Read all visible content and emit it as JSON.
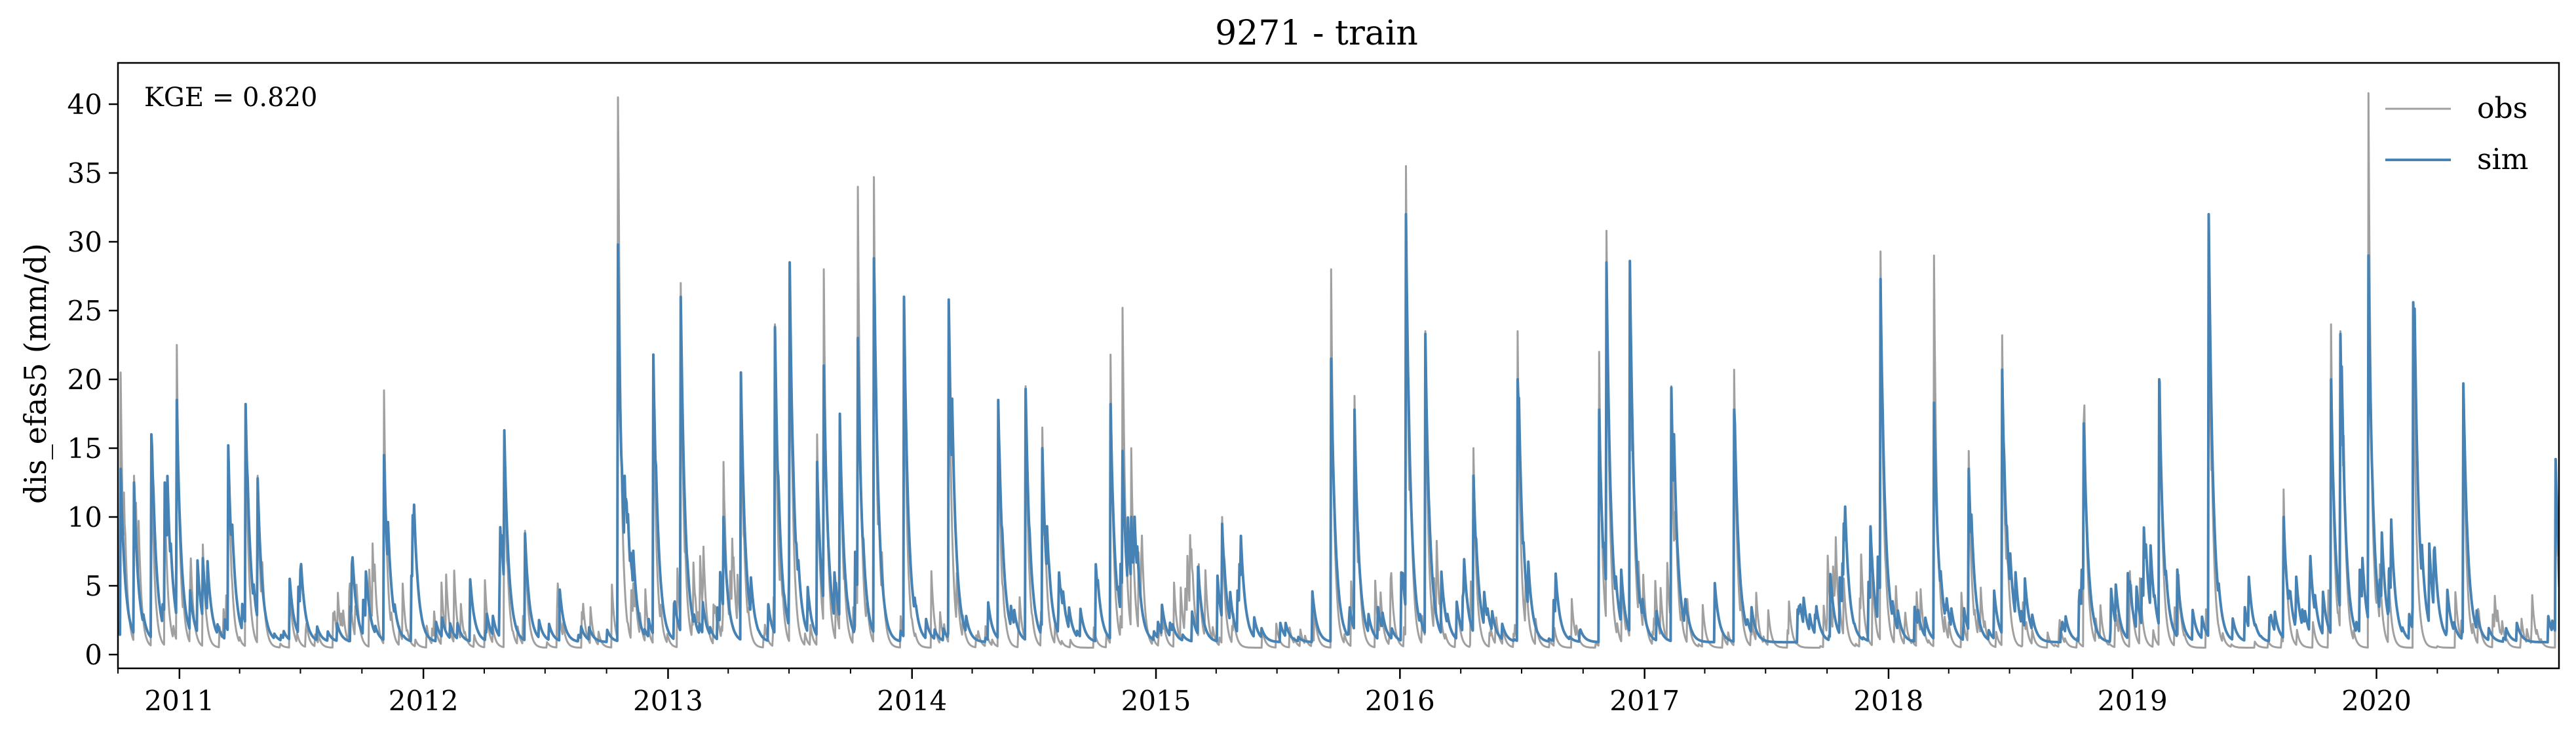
{
  "chart_data": {
    "type": "line",
    "title": "9271 - train",
    "xlabel": "",
    "ylabel": "dis_efas5 (mm/d)",
    "annotation": "KGE = 0.820",
    "xlim": [
      "2010-10-01",
      "2020-09-30"
    ],
    "ylim": [
      -1,
      43
    ],
    "yticks": [
      0,
      5,
      10,
      15,
      20,
      25,
      30,
      35,
      40
    ],
    "ytick_labels": [
      "0",
      "5",
      "10",
      "15",
      "20",
      "25",
      "30",
      "35",
      "40"
    ],
    "xticks": [
      "2011-01-01",
      "2012-01-01",
      "2013-01-01",
      "2014-01-01",
      "2015-01-01",
      "2016-01-01",
      "2017-01-01",
      "2018-01-01",
      "2019-01-01",
      "2020-01-01"
    ],
    "xtick_labels": [
      "2011",
      "2012",
      "2013",
      "2014",
      "2015",
      "2016",
      "2017",
      "2018",
      "2019",
      "2020"
    ],
    "grid": false,
    "legend": {
      "position": "top-right"
    },
    "series": [
      {
        "name": "obs",
        "color": "#a0a0a0",
        "peaks": [
          [
            "2010-10-05",
            20.5
          ],
          [
            "2010-10-25",
            13
          ],
          [
            "2010-11-20",
            16
          ],
          [
            "2010-12-10",
            12.5
          ],
          [
            "2010-12-28",
            22.5
          ],
          [
            "2011-02-05",
            8
          ],
          [
            "2011-03-15",
            15
          ],
          [
            "2011-04-10",
            18
          ],
          [
            "2011-04-28",
            13
          ],
          [
            "2011-06-15",
            5
          ],
          [
            "2011-11-03",
            19.2
          ],
          [
            "2012-05-01",
            16
          ],
          [
            "2012-06-01",
            9
          ],
          [
            "2012-10-18",
            40.5
          ],
          [
            "2012-12-10",
            21.8
          ],
          [
            "2013-01-20",
            27
          ],
          [
            "2013-03-25",
            14
          ],
          [
            "2013-04-20",
            20.5
          ],
          [
            "2013-06-10",
            24
          ],
          [
            "2013-07-02",
            28.5
          ],
          [
            "2013-08-12",
            16
          ],
          [
            "2013-08-22",
            28
          ],
          [
            "2013-09-15",
            17.5
          ],
          [
            "2013-10-12",
            34
          ],
          [
            "2013-11-05",
            34.7
          ],
          [
            "2013-12-20",
            26
          ],
          [
            "2014-02-25",
            25.8
          ],
          [
            "2014-05-10",
            18.5
          ],
          [
            "2014-06-20",
            19.5
          ],
          [
            "2014-07-15",
            16.5
          ],
          [
            "2014-10-25",
            21.8
          ],
          [
            "2014-11-12",
            25.2
          ],
          [
            "2014-11-25",
            15
          ],
          [
            "2015-04-10",
            10
          ],
          [
            "2015-09-20",
            28
          ],
          [
            "2015-10-25",
            18.8
          ],
          [
            "2016-01-10",
            35.5
          ],
          [
            "2016-02-08",
            23.5
          ],
          [
            "2016-04-20",
            15
          ],
          [
            "2016-06-25",
            23.5
          ],
          [
            "2016-10-25",
            22
          ],
          [
            "2016-11-05",
            30.8
          ],
          [
            "2016-12-10",
            28.5
          ],
          [
            "2017-02-10",
            19.5
          ],
          [
            "2017-05-15",
            20.7
          ],
          [
            "2017-12-20",
            29.3
          ],
          [
            "2018-03-10",
            29
          ],
          [
            "2018-05-01",
            14.8
          ],
          [
            "2018-06-20",
            23.2
          ],
          [
            "2018-10-20",
            17
          ],
          [
            "2019-02-10",
            20
          ],
          [
            "2019-04-25",
            32
          ],
          [
            "2019-08-15",
            12
          ],
          [
            "2019-10-25",
            24
          ],
          [
            "2019-11-08",
            23.5
          ],
          [
            "2019-12-20",
            40.8
          ],
          [
            "2020-02-25",
            25.5
          ],
          [
            "2020-05-10",
            19.7
          ],
          [
            "2020-09-25",
            14
          ]
        ]
      },
      {
        "name": "sim",
        "color": "#4682b4",
        "peaks": [
          [
            "2010-10-05",
            13.5
          ],
          [
            "2010-10-25",
            12.5
          ],
          [
            "2010-11-20",
            16
          ],
          [
            "2010-12-10",
            12.5
          ],
          [
            "2010-12-28",
            18.5
          ],
          [
            "2011-02-05",
            7
          ],
          [
            "2011-03-15",
            15.2
          ],
          [
            "2011-04-10",
            18.2
          ],
          [
            "2011-04-28",
            12.8
          ],
          [
            "2011-06-15",
            5.5
          ],
          [
            "2011-11-03",
            14.5
          ],
          [
            "2012-05-01",
            16.3
          ],
          [
            "2012-06-01",
            8.8
          ],
          [
            "2012-10-18",
            29.8
          ],
          [
            "2012-12-10",
            21.8
          ],
          [
            "2013-01-20",
            26
          ],
          [
            "2013-03-25",
            10
          ],
          [
            "2013-04-20",
            20.5
          ],
          [
            "2013-06-10",
            23.8
          ],
          [
            "2013-07-02",
            28.5
          ],
          [
            "2013-08-12",
            14
          ],
          [
            "2013-08-22",
            21
          ],
          [
            "2013-09-15",
            17.5
          ],
          [
            "2013-10-12",
            23
          ],
          [
            "2013-11-05",
            28.8
          ],
          [
            "2013-12-20",
            26
          ],
          [
            "2014-02-25",
            25.8
          ],
          [
            "2014-05-10",
            18.5
          ],
          [
            "2014-06-20",
            19.3
          ],
          [
            "2014-07-15",
            15
          ],
          [
            "2014-10-25",
            18.2
          ],
          [
            "2014-11-12",
            14.8
          ],
          [
            "2014-11-25",
            10
          ],
          [
            "2015-04-10",
            9.5
          ],
          [
            "2015-09-20",
            21.5
          ],
          [
            "2015-10-25",
            17.8
          ],
          [
            "2016-01-10",
            32
          ],
          [
            "2016-02-08",
            23.3
          ],
          [
            "2016-04-20",
            13
          ],
          [
            "2016-06-25",
            20
          ],
          [
            "2016-10-25",
            17.8
          ],
          [
            "2016-11-05",
            28.5
          ],
          [
            "2016-12-10",
            28.6
          ],
          [
            "2017-02-10",
            19.4
          ],
          [
            "2017-05-15",
            17.8
          ],
          [
            "2017-12-20",
            27.3
          ],
          [
            "2018-03-10",
            18.3
          ],
          [
            "2018-05-01",
            13.5
          ],
          [
            "2018-06-20",
            20.7
          ],
          [
            "2018-10-20",
            16.8
          ],
          [
            "2019-02-10",
            20
          ],
          [
            "2019-04-25",
            32
          ],
          [
            "2019-08-15",
            10
          ],
          [
            "2019-10-25",
            20
          ],
          [
            "2019-11-08",
            23.3
          ],
          [
            "2019-12-20",
            29
          ],
          [
            "2020-02-25",
            25.6
          ],
          [
            "2020-05-10",
            19.7
          ],
          [
            "2020-09-25",
            14.2
          ]
        ]
      }
    ]
  }
}
